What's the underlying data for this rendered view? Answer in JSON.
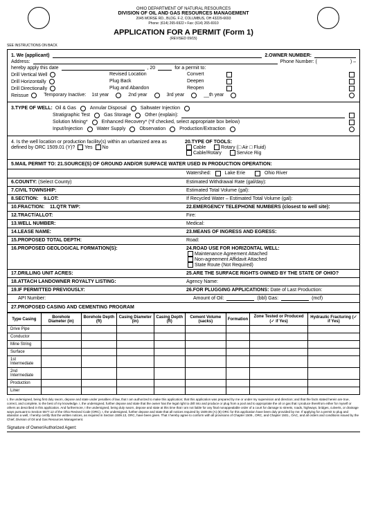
{
  "header": {
    "dept": "OHIO DEPARTMENT OF NATURAL RESOURCES",
    "division": "DIVISION OF OIL AND GAS RESOURCES MANAGEMENT",
    "addr1": "2045 MORSE RD., BLDG. F-2, COLUMBUS, OH 43229-6693",
    "addr2": "Phone: (614) 265-6922 • Fax: (614) 265-6910",
    "title": "APPLICATION FOR A PERMIT (Form 1)",
    "revised": "(REVISED 09/15)",
    "instr": "SEE INSTRUCTIONS ON BACK"
  },
  "s1": {
    "we": "1.  We (applicant)",
    "owner": "2.OWNER NUMBER:",
    "address": "Address:",
    "phone": "Phone Number:  (",
    "dash": ")         –",
    "hereby": "hereby apply this date",
    "year": ", 20",
    "permit": "for a permit to:",
    "r1a": "Drill Vertical Well",
    "r1b": "Revised Location",
    "r1c": "Convert",
    "r2a": "Drill Horizontally",
    "r2b": "Plug Back",
    "r2c": "Deepen",
    "r3a": "Drill Directionally",
    "r3b": "Plug and Abandon",
    "r3c": "Reopen",
    "r4a": "Reissue",
    "r4b": "Temporary Inactive:",
    "r4c": "1st year",
    "r4d": "2nd year",
    "r4e": "3rd year",
    "r4f": "__th year"
  },
  "s3": {
    "title": "3.TYPE OF WELL:",
    "a": "Oil & Gas",
    "b": "Annular Disposal",
    "c": "Saltwater Injection",
    "d": "Stratigraphic Test",
    "e": "Gas Storage",
    "f": "Other (explain):",
    "g": "Solution Mining*",
    "h": "Enhanced Recovery* (*if checked, select appropriate box below)",
    "i": "Input/Injection",
    "j": "Water Supply",
    "k": "Observation",
    "l": "Production/Extraction"
  },
  "s4": {
    "q": "4.  Is the well location or production facility(s) within an urbanized area as defined by ORC 1509.01 (Y)?",
    "yes": "Yes",
    "no": "No",
    "title20": "20.TYPE OF TOOLS:",
    "t1": "Cable",
    "t2": "Rotary",
    "t3": "(□ Air  □ Fluid)",
    "t4": "Cable/Rotary",
    "t5": "Service Rig"
  },
  "s5": {
    "title": "5.MAIL PERMIT TO:",
    "s21": "21.SOURCE(S) OF GROUND AND/OR SURFACE WATER USED IN PRODUCTION OPERATION:",
    "ws": "Watershed:",
    "lake": "Lake Erie",
    "ohio": "Ohio River",
    "county": "6.COUNTY:",
    "countyval": "(Select County)",
    "ewr": "Estimated Withdrawal Rate (gal/day):",
    "township": "7.CIVIL TOWNSHIP:",
    "etv": "Estimated Total Volume (gal):",
    "section": "8.SECTION:",
    "lot": "9.LOT:",
    "rw": "If Recycled Water – Estimated Total Volume (gal):",
    "fraction": "10.FRACTION:",
    "qtr": "11.QTR TWP:",
    "emerg": "22.EMERGENCY TELEPHONE NUMBERS (closest to well site):",
    "tract": "12.TRACT/ALLOT:",
    "fire": "Fire:",
    "wellnum": "13.WELL NUMBER:",
    "medical": "Medical:",
    "lease": "14.LEASE NAME:",
    "ingress": "23.MEANS OF INGRESS AND EGRESS:",
    "depth": "15.PROPOSED TOTAL DEPTH:",
    "road": "Road:",
    "geo": "16.PROPOSED GEOLOGICAL FORMATION(S):",
    "hwell": "24.ROAD USE FOR HORIZONTAL WELL:",
    "maint": "Maintenance Agreement Attached",
    "nonagr": "Non-agreement Affidavit Attached",
    "state": "State Route (Not Required)",
    "drill": "17.DRILLING UNIT ACRES:",
    "surf": "25.ARE THE SURFACE RIGHTS OWNED BY THE STATE OF OHIO?",
    "royalty": "18.ATTACH LANDOWNER ROYALTY LISTING:",
    "agency": "Agency Name:",
    "prev": "19.IF PERMITTED PREVIOUSLY:",
    "plug": "26.FOR PLUGGING APPLICATIONS:",
    "lastprod": "Date of Last Production:",
    "api": "API Number:",
    "amount": "Amount of Oil:",
    "bbl": "(bbl)  Gas:",
    "mcf": "(mcf)"
  },
  "casing": {
    "title": "27.PROPOSED CASING AND CEMENTING PROGRAM",
    "cols": [
      "Type Casing",
      "Borehole Diameter (in)",
      "Borehole Depth (ft)",
      "Casing Diameter (in)",
      "Casing Depth (ft)",
      "Cement Volume (sacks)",
      "Formation",
      "Zone Tested or Produced (✓ if Yes)",
      "Hydraulic Fracturing (✓ if Yes)"
    ],
    "rows": [
      "Drive Pipe",
      "Conductor",
      "Mine String",
      "Surface",
      "1st Intermediate",
      "2nd Intermediate",
      "Production",
      "Liner"
    ]
  },
  "fine": "I, the undersigned, being first duly sworn, depose and state under penalties of law, that I am authorized to make this application; that this application was prepared by me or under my supervision and direction; and that the facts stated herein are true, correct, and complete, to the best of my knowledge. I, the undersigned, further depose and state that the owner has the legal right to drill into and produce or plug from a pool and to appropriate the oil or gas that I produce therefrom either for myself or others as described in this application. And furthermore, I the undersigned, being duly sworn, depose and state at this time that I am not liable for any final nonappealable order of a court for damage to streets, roads, highways, bridges, culverts, or drainage ways pursuant to Section 5577.12 of the Ohio Revised Code (ORC). I, the undersigned, further depose and state that all notices required by 1509.06 (A) (8) ORC for this application have been duly provided by me. If applying for a permit to plug and abandon a well, I hereby certify that the written notices, as required in Section 1509.13, ORC, have been given. That I hereby agree to conform with all provisions of Chapter 1509., ORC, and Chapter 1501., OAC, and all orders and conditions issued by the Chief, Division of Oil and Gas Resources Management.",
  "sig1": "Signature of Owner/Authorized Agent:"
}
